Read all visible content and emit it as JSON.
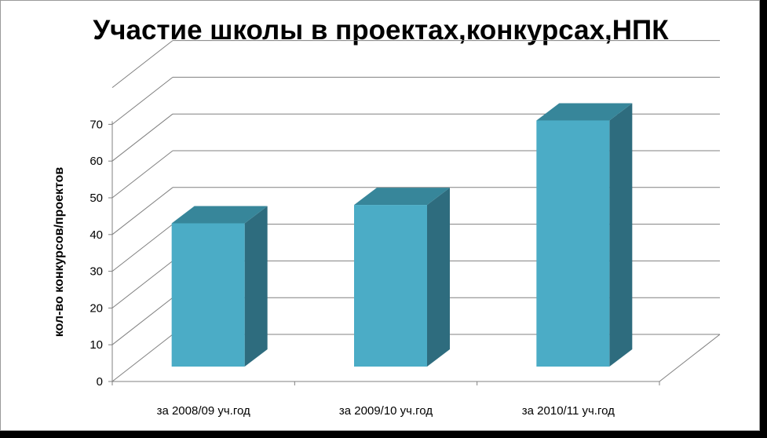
{
  "chart_data": {
    "type": "bar",
    "title": "Участие школы в проектах,конкурсах,НПК",
    "xlabel": "",
    "ylabel": "кол-во конкурсов/проектов",
    "categories": [
      "за 2008/09 уч.год",
      "за 2009/10 уч.год",
      "за 2010/11 уч.год"
    ],
    "series": [
      {
        "values": [
          39,
          44,
          67
        ]
      }
    ],
    "yticks": [
      0,
      10,
      20,
      30,
      40,
      50,
      60,
      70
    ],
    "ylim": [
      0,
      70
    ],
    "grid": true,
    "legend": "none",
    "colors": {
      "front": "#4bacc6",
      "top": "#37869a",
      "side": "#2e6c7e",
      "grid": "#808080"
    }
  }
}
